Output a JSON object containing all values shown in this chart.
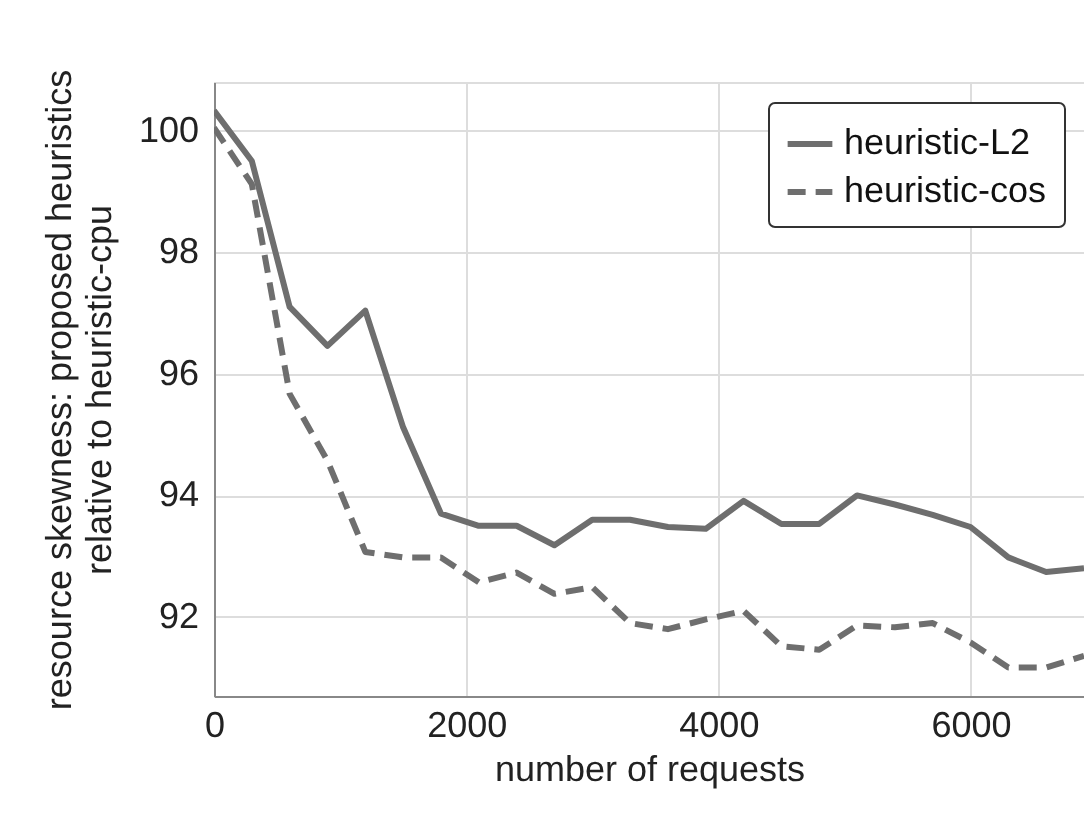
{
  "chart_data": {
    "type": "line",
    "xlabel": "number of requests",
    "ylabel": "resource skewness: proposed heuristics\nrelative to heuristic-cpu",
    "x": [
      0,
      300,
      600,
      900,
      1200,
      1500,
      1800,
      2100,
      2400,
      2700,
      3000,
      3300,
      3600,
      3900,
      4200,
      4500,
      4800,
      5100,
      5400,
      5700,
      6000,
      6300,
      6600,
      6900
    ],
    "series": [
      {
        "name": "heuristic-L2",
        "color": "#6e6e6e",
        "line_style": "solid",
        "values": [
          100.33,
          99.5,
          97.1,
          96.46,
          97.04,
          95.12,
          93.7,
          93.5,
          93.5,
          93.18,
          93.6,
          93.6,
          93.48,
          93.45,
          93.91,
          93.53,
          93.53,
          94.0,
          93.85,
          93.68,
          93.48,
          92.98,
          92.74,
          92.8
        ]
      },
      {
        "name": "heuristic-cos",
        "color": "#6e6e6e",
        "line_style": "dashed",
        "values": [
          100.05,
          99.12,
          95.67,
          94.57,
          93.07,
          92.98,
          92.98,
          92.57,
          92.73,
          92.38,
          92.49,
          91.9,
          91.8,
          91.96,
          92.1,
          91.52,
          91.46,
          91.86,
          91.83,
          91.9,
          91.58,
          91.17,
          91.17,
          91.36
        ]
      }
    ],
    "xlim": [
      0,
      6900
    ],
    "xticks": [
      0,
      2000,
      4000,
      6000
    ],
    "ylim": [
      90.7,
      100.8
    ],
    "yticks": [
      92,
      94,
      96,
      98,
      100
    ],
    "grid": true,
    "legend": "top right"
  }
}
